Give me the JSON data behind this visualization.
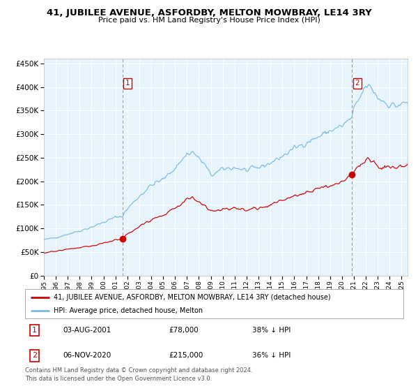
{
  "title": "41, JUBILEE AVENUE, ASFORDBY, MELTON MOWBRAY, LE14 3RY",
  "subtitle": "Price paid vs. HM Land Registry's House Price Index (HPI)",
  "legend_line1": "41, JUBILEE AVENUE, ASFORDBY, MELTON MOWBRAY, LE14 3RY (detached house)",
  "legend_line2": "HPI: Average price, detached house, Melton",
  "footnote": "Contains HM Land Registry data © Crown copyright and database right 2024.\nThis data is licensed under the Open Government Licence v3.0.",
  "sale1_date_label": "03-AUG-2001",
  "sale1_price_label": "£78,000",
  "sale1_hpi_label": "38% ↓ HPI",
  "sale1_year": 2001.58,
  "sale1_price": 78000,
  "sale2_date_label": "06-NOV-2020",
  "sale2_price_label": "£215,000",
  "sale2_hpi_label": "36% ↓ HPI",
  "sale2_year": 2020.84,
  "sale2_price": 215000,
  "hpi_color": "#7cb9e0",
  "price_color": "#cc0000",
  "plot_bg_color": "#e8f4fb",
  "grid_color": "#ffffff",
  "vline1_color": "#888888",
  "vline2_color": "#cc4444",
  "ylim_max": 460000,
  "xlim_start": 1995.0,
  "xlim_end": 2025.5,
  "hpi_anchors_x": [
    1995.0,
    1996.0,
    1997.0,
    1998.0,
    1999.0,
    2000.0,
    2001.0,
    2001.58,
    2002.0,
    2003.0,
    2004.0,
    2005.0,
    2006.0,
    2007.0,
    2007.5,
    2008.5,
    2009.0,
    2009.5,
    2010.0,
    2011.0,
    2012.0,
    2013.0,
    2014.0,
    2015.0,
    2016.0,
    2017.0,
    2018.0,
    2019.0,
    2020.0,
    2020.84,
    2021.0,
    2021.5,
    2022.0,
    2022.5,
    2023.0,
    2023.5,
    2024.0,
    2024.5,
    2025.0,
    2025.4
  ],
  "hpi_anchors_y": [
    76000,
    81000,
    88000,
    95000,
    103000,
    113000,
    124000,
    126000,
    142000,
    168000,
    192000,
    204000,
    228000,
    258000,
    262000,
    235000,
    213000,
    218000,
    226000,
    229000,
    223000,
    229000,
    239000,
    253000,
    270000,
    282000,
    294000,
    307000,
    317000,
    335000,
    352000,
    377000,
    402000,
    397000,
    377000,
    370000,
    362000,
    360000,
    363000,
    366000
  ],
  "price_anchors_x": [
    1995.0,
    1996.0,
    1997.0,
    1998.0,
    1999.0,
    2000.0,
    2001.0,
    2001.58,
    2002.0,
    2003.0,
    2004.0,
    2005.0,
    2006.0,
    2007.0,
    2007.5,
    2008.5,
    2009.0,
    2009.5,
    2010.0,
    2011.0,
    2012.0,
    2013.0,
    2014.0,
    2015.0,
    2016.0,
    2017.0,
    2018.0,
    2019.0,
    2020.0,
    2020.84,
    2021.0,
    2021.5,
    2022.0,
    2022.5,
    2023.0,
    2023.5,
    2024.0,
    2024.5,
    2025.0,
    2025.4
  ],
  "price_anchors_y": [
    48000,
    52000,
    56000,
    59000,
    63000,
    69000,
    76000,
    78000,
    88000,
    104000,
    120000,
    128000,
    143000,
    162000,
    164000,
    148000,
    134000,
    137000,
    141000,
    143000,
    139000,
    143000,
    150000,
    159000,
    169000,
    177000,
    185000,
    192000,
    198000,
    215000,
    224000,
    232000,
    248000,
    242000,
    232000,
    228000,
    228000,
    230000,
    232000,
    235000
  ]
}
